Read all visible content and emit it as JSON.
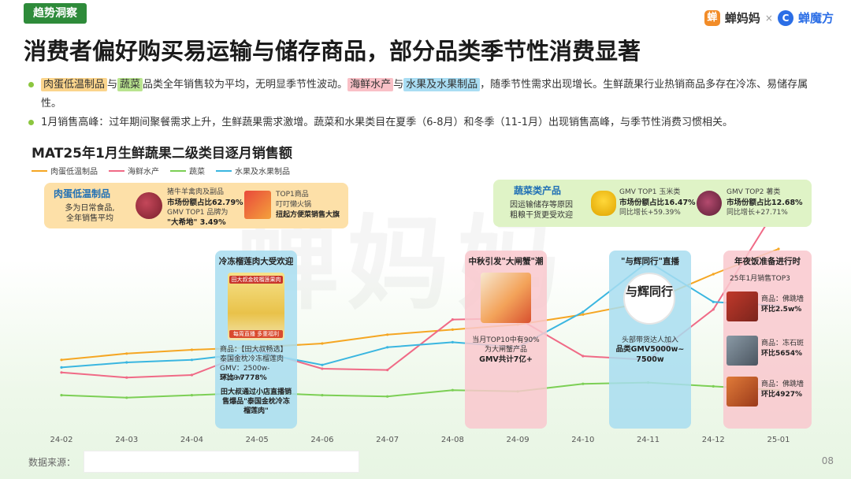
{
  "tag": "趋势洞察",
  "brand": {
    "logo1": "蝉妈妈",
    "sep": "×",
    "logo2": "蝉魔方",
    "colors": {
      "orange": "#f28c28",
      "blue": "#2b6ee6"
    }
  },
  "title": "消费者偏好购买易运输与储存商品，部分品类季节性消费显著",
  "bullets": [
    {
      "parts": [
        {
          "text": "肉蛋低温制品",
          "hl": "or"
        },
        {
          "text": "与"
        },
        {
          "text": "蔬菜",
          "hl": "gr"
        },
        {
          "text": "品类全年销售较为平均，无明显季节性波动。"
        },
        {
          "text": "海鲜水产",
          "hl": "pk"
        },
        {
          "text": "与"
        },
        {
          "text": "水果及水果制品",
          "hl": "bl"
        },
        {
          "text": "，随季节性需求出现增长。生鲜蔬果行业热销商品多存在冷冻、易储存属性。"
        }
      ]
    },
    {
      "parts": [
        {
          "text": "1月销售高峰：过年期间聚餐需求上升，生鲜蔬果需求激增。蔬菜和水果类目在夏季（6-8月）和冬季（11-1月）出现销售高峰，与季节性消费习惯相关。"
        }
      ]
    }
  ],
  "chart_title": "MAT25年1月生鲜蔬果二级类目逐月销售额",
  "watermark": "蝉妈妈",
  "chart_data": {
    "type": "line",
    "categories": [
      "24-02",
      "24-03",
      "24-04",
      "24-05",
      "24-06",
      "24-07",
      "24-08",
      "24-09",
      "24-10",
      "24-11",
      "24-12",
      "25-01"
    ],
    "series": [
      {
        "name": "肉蛋低温制品",
        "color": "#f5a623",
        "values": [
          0.52,
          0.57,
          0.6,
          0.62,
          0.65,
          0.72,
          0.76,
          0.8,
          0.88,
          0.98,
          1.2,
          1.4
        ]
      },
      {
        "name": "海鲜水产",
        "color": "#f06a86",
        "values": [
          0.42,
          0.38,
          0.4,
          0.6,
          0.45,
          0.44,
          0.84,
          0.85,
          0.55,
          0.52,
          0.92,
          1.75
        ]
      },
      {
        "name": "蔬菜",
        "color": "#7ccf55",
        "values": [
          0.24,
          0.22,
          0.24,
          0.26,
          0.24,
          0.23,
          0.28,
          0.27,
          0.33,
          0.34,
          0.31,
          0.28
        ]
      },
      {
        "name": "水果及水果制品",
        "color": "#3ab6e0",
        "values": [
          0.46,
          0.5,
          0.52,
          0.58,
          0.48,
          0.62,
          0.66,
          0.62,
          0.9,
          1.3,
          0.98,
          0.95
        ]
      }
    ],
    "xlabel": "",
    "ylabel": "",
    "grid": false,
    "legend": "top-left"
  },
  "callout_left": {
    "head": "肉蛋低温制品",
    "sub1": "多为日常食品,",
    "sub2": "全年销售平均",
    "t1": "猪牛羊禽肉及副品",
    "t2": "市场份额占比62.79%",
    "t3": "GMV TOP1 品牌为",
    "t4": "\"大希地\" 3.49%",
    "t5": "TOP1商品",
    "t6": "叮叮懒火锅",
    "t7": "扭起方便菜销售大旗",
    "colors": {
      "bg": "#fde0a8",
      "head": "#1f6fb5"
    }
  },
  "callout_right": {
    "head": "蔬菜类产品",
    "sub1": "因运输储存等原因",
    "sub2": "粗粮干货更受欢迎",
    "t1": "GMV TOP1 玉米类",
    "t2": "市场份额占比16.47%",
    "t3": "同比增长+59.39%",
    "t4": "GMV TOP2 薯类",
    "t5": "市场份额占比12.68%",
    "t6": "同比增长+27.71%",
    "colors": {
      "bg": "#dff3c6",
      "head": "#1f6fb5"
    }
  },
  "panels": {
    "p1": {
      "head": "冷冻榴莲肉大受欢迎",
      "img_caption": "田大叔金枕榴莲果肉",
      "img_badge": "每周直播 多重福利",
      "l1": "商品：【田大叔畅选】",
      "l2": "泰国金枕冷冻榴莲肉",
      "l3": "GMV：2500w-5000w",
      "l4": "环比+7778%",
      "l5": "田大叔通过小店直播销",
      "l6": "售爆品\"泰国金枕冷冻",
      "l7": "榴莲肉\""
    },
    "p2": {
      "head": "中秋引发\"大闸蟹\"潮",
      "l1": "当月TOP10中有90%",
      "l2": "为大闸蟹产品",
      "l3": "GMV共计7亿+"
    },
    "p3": {
      "head": "\"与辉同行\"直播",
      "logo": "与辉同行",
      "l1": "头部带货达人加入",
      "l2": "品类GMV5000w~",
      "l3": "7500w"
    },
    "p4": {
      "head": "年夜饭准备进行时",
      "sub": "25年1月销售TOP3",
      "r1a": "商品：佛跳墙",
      "r1b": "环比2.5w%",
      "r2a": "商品：冻石斑",
      "r2b": "环比5654%",
      "r3a": "商品：佛跳墙",
      "r3b": "环比4927%"
    }
  },
  "source_label": "数据来源：",
  "page_number": "08"
}
